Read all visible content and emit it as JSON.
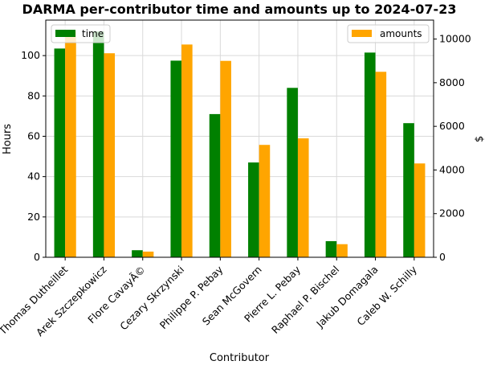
{
  "chart_data": {
    "type": "bar",
    "title": "DARMA per-contributor time and amounts up to 2024-07-23",
    "xlabel": "Contributor",
    "ylabel_left": "Hours",
    "ylabel_right": "$",
    "categories": [
      "Thomas Dutheillet",
      "Arek Szczepkowicz",
      "Flore CavayÃ©",
      "Cezary Skrzynski",
      "Philippe P. Pebay",
      "Sean McGovern",
      "Pierre L. Pebay",
      "Raphael P. Bischel",
      "Jakub Domagala",
      "Caleb W. Schilly"
    ],
    "series": [
      {
        "name": "time",
        "axis": "left",
        "color": "#008000",
        "values": [
          103.5,
          112,
          3.5,
          97.5,
          71,
          47,
          84,
          8,
          101.5,
          66.5
        ]
      },
      {
        "name": "amounts",
        "axis": "right",
        "color": "#ffa500",
        "values": [
          10350,
          9350,
          260,
          9750,
          9000,
          5150,
          5450,
          600,
          8500,
          4300
        ]
      }
    ],
    "ylim_left": [
      0,
      117.6
    ],
    "ylim_right": [
      0,
      10869
    ],
    "yticks_left": [
      0,
      20,
      40,
      60,
      80,
      100
    ],
    "yticks_right": [
      0,
      2000,
      4000,
      6000,
      8000,
      10000
    ],
    "grid": true,
    "legend_left": "top-left",
    "legend_right": "top-right"
  }
}
